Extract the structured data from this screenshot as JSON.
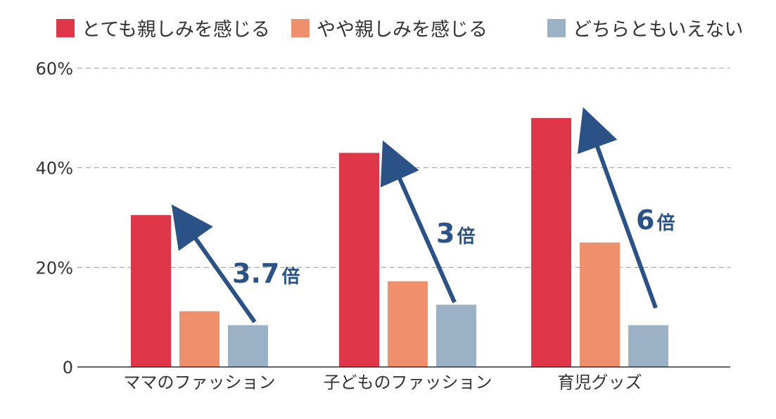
{
  "chart_data": {
    "type": "bar",
    "categories": [
      "ママのファッション",
      "子どものファッション",
      "育児グッズ"
    ],
    "series": [
      {
        "name": "とても親しみを感じる",
        "color": "#e0364a",
        "values": [
          30.5,
          43,
          50
        ]
      },
      {
        "name": "やや親しみを感じる",
        "color": "#ef8f6c",
        "values": [
          11.2,
          17.2,
          25
        ]
      },
      {
        "name": "どちらともいえない",
        "color": "#9ab1c6",
        "values": [
          8.4,
          12.5,
          8.4
        ]
      }
    ],
    "ylim": [
      0,
      60
    ],
    "yticks": [
      {
        "value": 0,
        "label": "0"
      },
      {
        "value": 20,
        "label": "20%"
      },
      {
        "value": 40,
        "label": "40%"
      },
      {
        "value": 60,
        "label": "60%"
      }
    ],
    "grid": true,
    "legend_position": "top",
    "annotations": [
      {
        "category_index": 0,
        "number": "3.7",
        "unit": "倍"
      },
      {
        "category_index": 1,
        "number": "3",
        "unit": "倍"
      },
      {
        "category_index": 2,
        "number": "6",
        "unit": "倍"
      }
    ],
    "colors": {
      "arrow": "#2b5286",
      "grid": "#999999",
      "axis": "#333333"
    }
  }
}
